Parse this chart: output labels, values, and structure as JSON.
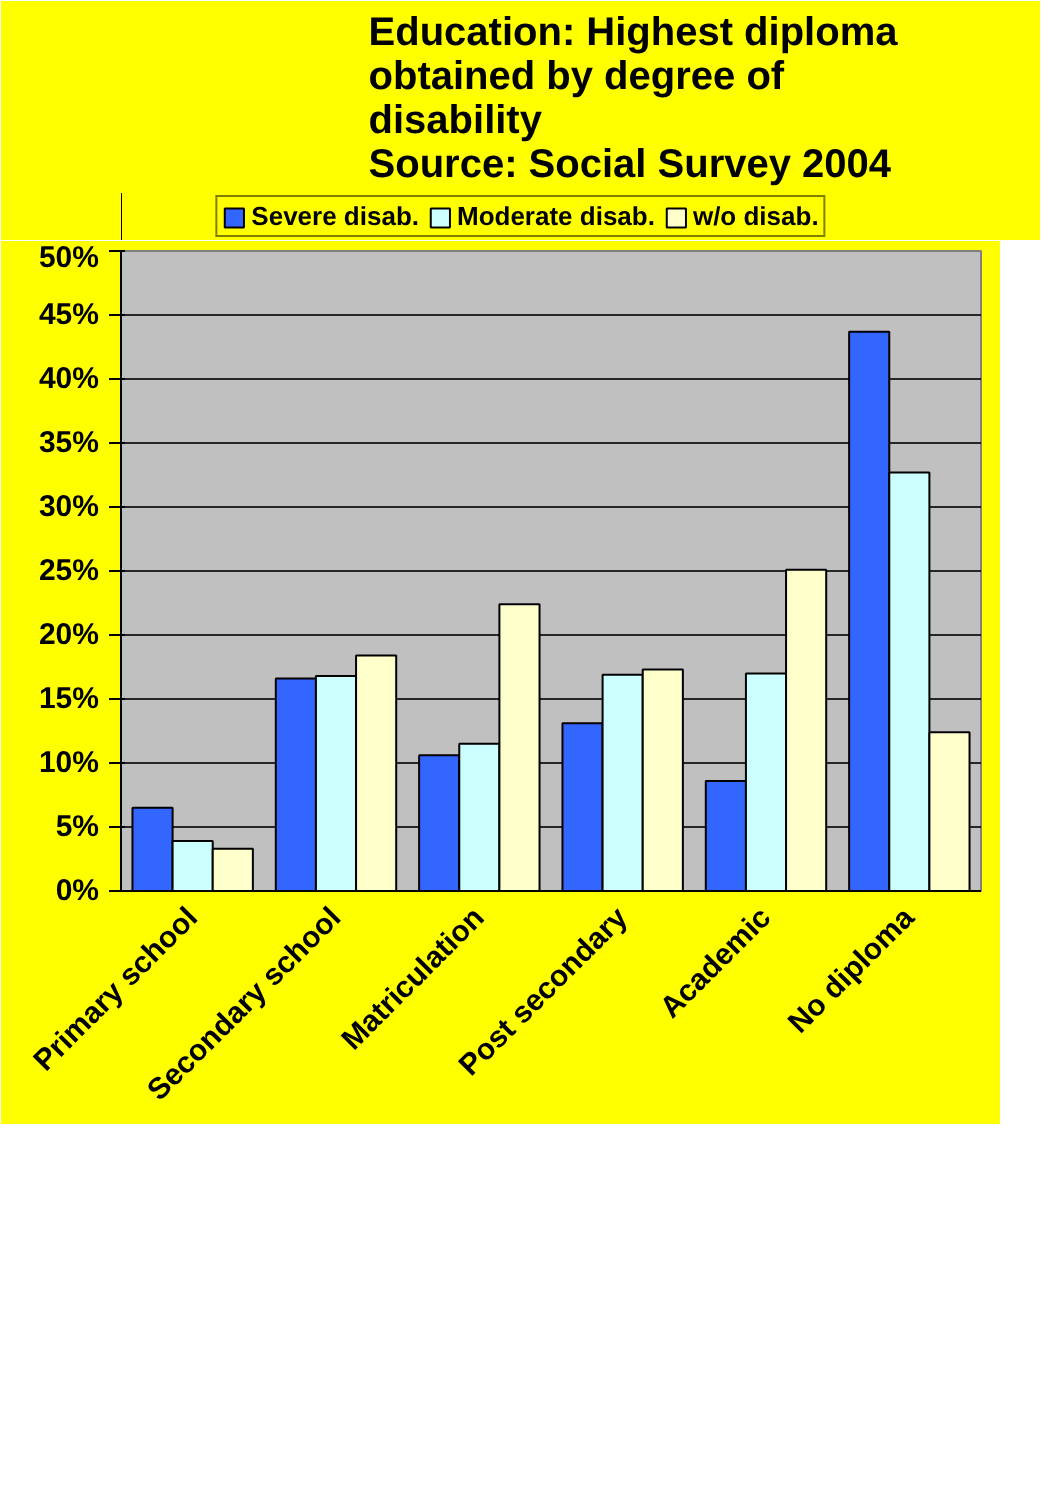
{
  "chart_data": {
    "type": "bar",
    "title": "Education: Highest diploma\nobtained by degree of\ndisability\nSource: Social Survey 2004",
    "categories": [
      "Primary school",
      "Secondary school",
      "Matriculation",
      "Post secondary",
      "Academic",
      "No diploma"
    ],
    "series": [
      {
        "name": "Severe disab.",
        "color": "#3366ff",
        "values": [
          6.5,
          16.6,
          10.6,
          13.1,
          8.6,
          43.7
        ]
      },
      {
        "name": "Moderate disab.",
        "color": "#ccffff",
        "values": [
          3.9,
          16.8,
          11.5,
          16.9,
          17.0,
          32.7
        ]
      },
      {
        "name": "w/o disab.",
        "color": "#ffffcc",
        "values": [
          3.3,
          18.4,
          22.4,
          17.3,
          25.1,
          12.4
        ]
      }
    ],
    "ylim": [
      0,
      50
    ],
    "yticks": [
      {
        "value": 0,
        "label": "0%"
      },
      {
        "value": 5,
        "label": "5%"
      },
      {
        "value": 10,
        "label": "10%"
      },
      {
        "value": 15,
        "label": "15%"
      },
      {
        "value": 20,
        "label": "20%"
      },
      {
        "value": 25,
        "label": "25%"
      },
      {
        "value": 30,
        "label": "30%"
      },
      {
        "value": 35,
        "label": "35%"
      },
      {
        "value": 40,
        "label": "40%"
      },
      {
        "value": 45,
        "label": "45%"
      },
      {
        "value": 50,
        "label": "50%"
      }
    ],
    "grid": "y",
    "legend": "top"
  }
}
